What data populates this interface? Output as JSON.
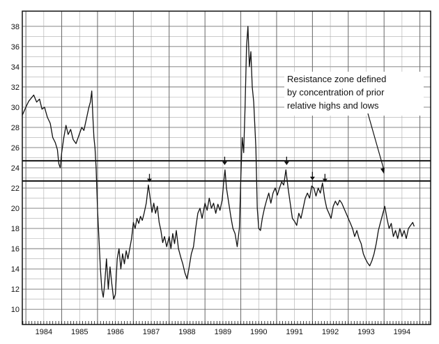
{
  "chart_data": {
    "type": "line",
    "title": "",
    "xlabel": "",
    "ylabel": "",
    "xlim": [
      1983.9,
      1995.3
    ],
    "ylim": [
      8.5,
      39.5
    ],
    "grid": true,
    "y_ticks": [
      10,
      12,
      14,
      16,
      18,
      20,
      22,
      24,
      26,
      28,
      30,
      32,
      34,
      36,
      38
    ],
    "x_tick_labels": [
      {
        "label": "1984",
        "value": 1984
      },
      {
        "label": "1985",
        "value": 1985
      },
      {
        "label": "1986",
        "value": 1986
      },
      {
        "label": "1987",
        "value": 1987
      },
      {
        "label": "1988",
        "value": 1988
      },
      {
        "label": "1989",
        "value": 1989
      },
      {
        "label": "1990",
        "value": 1990
      },
      {
        "label": "1991",
        "value": 1991
      },
      {
        "label": "1992",
        "value": 1992
      },
      {
        "label": "1993",
        "value": 1993
      },
      {
        "label": "1994",
        "value": 1994
      }
    ],
    "series": [
      {
        "points": [
          [
            1983.9,
            29.2
          ],
          [
            1984.0,
            30.0
          ],
          [
            1984.08,
            30.6
          ],
          [
            1984.15,
            30.9
          ],
          [
            1984.22,
            31.2
          ],
          [
            1984.3,
            30.5
          ],
          [
            1984.38,
            30.8
          ],
          [
            1984.45,
            29.8
          ],
          [
            1984.52,
            30.0
          ],
          [
            1984.6,
            29.0
          ],
          [
            1984.68,
            28.4
          ],
          [
            1984.75,
            27.0
          ],
          [
            1984.82,
            26.5
          ],
          [
            1984.88,
            25.8
          ],
          [
            1984.92,
            24.4
          ],
          [
            1984.96,
            24.0
          ],
          [
            1985.0,
            25.5
          ],
          [
            1985.06,
            27.0
          ],
          [
            1985.12,
            28.2
          ],
          [
            1985.18,
            27.3
          ],
          [
            1985.25,
            27.8
          ],
          [
            1985.32,
            26.8
          ],
          [
            1985.4,
            26.4
          ],
          [
            1985.48,
            27.2
          ],
          [
            1985.56,
            28.0
          ],
          [
            1985.62,
            27.7
          ],
          [
            1985.7,
            29.0
          ],
          [
            1985.76,
            30.0
          ],
          [
            1985.8,
            30.5
          ],
          [
            1985.84,
            31.6
          ],
          [
            1985.87,
            29.0
          ],
          [
            1985.9,
            27.0
          ],
          [
            1985.93,
            26.0
          ],
          [
            1985.96,
            24.0
          ],
          [
            1986.0,
            20.0
          ],
          [
            1986.04,
            17.0
          ],
          [
            1986.08,
            14.0
          ],
          [
            1986.12,
            12.0
          ],
          [
            1986.16,
            11.2
          ],
          [
            1986.2,
            12.5
          ],
          [
            1986.25,
            15.0
          ],
          [
            1986.3,
            12.0
          ],
          [
            1986.35,
            14.2
          ],
          [
            1986.4,
            12.5
          ],
          [
            1986.45,
            11.0
          ],
          [
            1986.5,
            11.5
          ],
          [
            1986.55,
            15.0
          ],
          [
            1986.6,
            16.0
          ],
          [
            1986.65,
            14.0
          ],
          [
            1986.7,
            15.5
          ],
          [
            1986.75,
            14.5
          ],
          [
            1986.8,
            15.8
          ],
          [
            1986.85,
            15.0
          ],
          [
            1986.9,
            16.0
          ],
          [
            1986.95,
            17.0
          ],
          [
            1987.0,
            18.6
          ],
          [
            1987.05,
            18.0
          ],
          [
            1987.1,
            19.0
          ],
          [
            1987.15,
            18.5
          ],
          [
            1987.2,
            19.2
          ],
          [
            1987.25,
            18.8
          ],
          [
            1987.3,
            19.5
          ],
          [
            1987.36,
            20.5
          ],
          [
            1987.42,
            22.3
          ],
          [
            1987.47,
            21.0
          ],
          [
            1987.52,
            19.6
          ],
          [
            1987.57,
            20.5
          ],
          [
            1987.62,
            19.5
          ],
          [
            1987.67,
            20.2
          ],
          [
            1987.72,
            18.6
          ],
          [
            1987.77,
            17.8
          ],
          [
            1987.82,
            16.6
          ],
          [
            1987.87,
            17.2
          ],
          [
            1987.93,
            16.2
          ],
          [
            1988.0,
            17.2
          ],
          [
            1988.05,
            16.0
          ],
          [
            1988.1,
            17.5
          ],
          [
            1988.15,
            16.5
          ],
          [
            1988.2,
            17.8
          ],
          [
            1988.26,
            16.0
          ],
          [
            1988.32,
            15.2
          ],
          [
            1988.38,
            14.5
          ],
          [
            1988.44,
            13.6
          ],
          [
            1988.5,
            13.0
          ],
          [
            1988.56,
            14.2
          ],
          [
            1988.62,
            15.5
          ],
          [
            1988.68,
            16.2
          ],
          [
            1988.74,
            18.0
          ],
          [
            1988.8,
            19.5
          ],
          [
            1988.86,
            20.0
          ],
          [
            1988.92,
            19.0
          ],
          [
            1989.0,
            20.5
          ],
          [
            1989.06,
            19.8
          ],
          [
            1989.12,
            21.0
          ],
          [
            1989.18,
            20.0
          ],
          [
            1989.24,
            20.5
          ],
          [
            1989.3,
            19.5
          ],
          [
            1989.36,
            20.4
          ],
          [
            1989.42,
            19.8
          ],
          [
            1989.48,
            20.8
          ],
          [
            1989.52,
            22.5
          ],
          [
            1989.56,
            23.8
          ],
          [
            1989.6,
            22.0
          ],
          [
            1989.66,
            20.6
          ],
          [
            1989.72,
            19.2
          ],
          [
            1989.78,
            18.0
          ],
          [
            1989.84,
            17.5
          ],
          [
            1989.9,
            16.2
          ],
          [
            1989.96,
            18.0
          ],
          [
            1990.0,
            23.0
          ],
          [
            1990.04,
            27.0
          ],
          [
            1990.08,
            25.5
          ],
          [
            1990.12,
            30.0
          ],
          [
            1990.16,
            36.0
          ],
          [
            1990.2,
            38.0
          ],
          [
            1990.24,
            34.0
          ],
          [
            1990.28,
            35.5
          ],
          [
            1990.32,
            32.0
          ],
          [
            1990.36,
            30.5
          ],
          [
            1990.42,
            26.0
          ],
          [
            1990.46,
            20.0
          ],
          [
            1990.5,
            18.0
          ],
          [
            1990.55,
            17.8
          ],
          [
            1990.6,
            19.0
          ],
          [
            1990.66,
            20.0
          ],
          [
            1990.72,
            20.8
          ],
          [
            1990.78,
            21.5
          ],
          [
            1990.84,
            20.5
          ],
          [
            1990.9,
            21.5
          ],
          [
            1990.96,
            22.0
          ],
          [
            1991.02,
            21.3
          ],
          [
            1991.08,
            22.0
          ],
          [
            1991.14,
            22.6
          ],
          [
            1991.2,
            22.3
          ],
          [
            1991.26,
            23.8
          ],
          [
            1991.32,
            22.0
          ],
          [
            1991.38,
            20.5
          ],
          [
            1991.44,
            19.0
          ],
          [
            1991.5,
            18.7
          ],
          [
            1991.56,
            18.3
          ],
          [
            1991.62,
            19.5
          ],
          [
            1991.68,
            19.0
          ],
          [
            1991.74,
            20.0
          ],
          [
            1991.8,
            21.0
          ],
          [
            1991.86,
            21.5
          ],
          [
            1991.92,
            21.0
          ],
          [
            1991.98,
            22.2
          ],
          [
            1992.04,
            22.0
          ],
          [
            1992.1,
            21.2
          ],
          [
            1992.16,
            22.0
          ],
          [
            1992.22,
            21.5
          ],
          [
            1992.28,
            22.5
          ],
          [
            1992.34,
            21.0
          ],
          [
            1992.4,
            20.0
          ],
          [
            1992.46,
            19.5
          ],
          [
            1992.52,
            19.0
          ],
          [
            1992.58,
            20.2
          ],
          [
            1992.64,
            20.7
          ],
          [
            1992.7,
            20.3
          ],
          [
            1992.76,
            20.8
          ],
          [
            1992.82,
            20.5
          ],
          [
            1992.88,
            20.0
          ],
          [
            1992.94,
            19.5
          ],
          [
            1993.0,
            19.0
          ],
          [
            1993.06,
            18.5
          ],
          [
            1993.12,
            18.0
          ],
          [
            1993.18,
            17.2
          ],
          [
            1993.24,
            17.8
          ],
          [
            1993.3,
            17.0
          ],
          [
            1993.36,
            16.5
          ],
          [
            1993.42,
            15.5
          ],
          [
            1993.48,
            15.0
          ],
          [
            1993.54,
            14.6
          ],
          [
            1993.6,
            14.3
          ],
          [
            1993.66,
            14.8
          ],
          [
            1993.72,
            15.5
          ],
          [
            1993.78,
            16.5
          ],
          [
            1993.84,
            17.8
          ],
          [
            1993.9,
            18.6
          ],
          [
            1993.96,
            19.4
          ],
          [
            1994.02,
            20.2
          ],
          [
            1994.08,
            19.0
          ],
          [
            1994.14,
            18.0
          ],
          [
            1994.2,
            18.5
          ],
          [
            1994.26,
            17.2
          ],
          [
            1994.32,
            17.8
          ],
          [
            1994.38,
            17.0
          ],
          [
            1994.44,
            18.0
          ],
          [
            1994.5,
            17.2
          ],
          [
            1994.56,
            17.8
          ],
          [
            1994.62,
            17.0
          ],
          [
            1994.68,
            18.0
          ],
          [
            1994.74,
            18.3
          ],
          [
            1994.8,
            18.6
          ],
          [
            1994.84,
            18.2
          ]
        ]
      }
    ],
    "horizontal_lines": [
      24.7,
      22.7
    ],
    "arrow_markers": [
      {
        "x": 1987.45,
        "y": 22.3
      },
      {
        "x": 1989.55,
        "y": 24.0
      },
      {
        "x": 1991.28,
        "y": 24.0
      },
      {
        "x": 1992.0,
        "y": 22.5
      },
      {
        "x": 1992.35,
        "y": 22.3
      }
    ],
    "annotation": {
      "lines": [
        "Resistance zone defined",
        "by concentration of prior",
        "relative highs and lows"
      ],
      "arrow_target": {
        "x": 1994.0,
        "y": 23.4
      }
    }
  }
}
